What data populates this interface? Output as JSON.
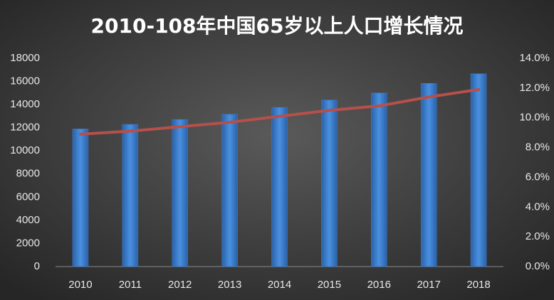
{
  "chart_data": {
    "type": "bar",
    "title": "2010-108年中国65岁以上人口增长情况",
    "categories": [
      "2010",
      "2011",
      "2012",
      "2013",
      "2014",
      "2015",
      "2016",
      "2017",
      "2018"
    ],
    "series": [
      {
        "type": "bar",
        "color": "#3b7fd4",
        "values": [
          11894,
          12288,
          12714,
          13161,
          13755,
          14386,
          15003,
          15831,
          16658
        ]
      },
      {
        "type": "line",
        "axis": "y2",
        "color": "#b5504b",
        "values": [
          8.9,
          9.1,
          9.4,
          9.7,
          10.1,
          10.5,
          10.8,
          11.4,
          11.9
        ]
      }
    ],
    "ylim": [
      0,
      18000
    ],
    "yticks": [
      0,
      2000,
      4000,
      6000,
      8000,
      10000,
      12000,
      14000,
      16000,
      18000
    ],
    "y2lim": [
      0,
      14
    ],
    "y2ticks": [
      {
        "value": 0,
        "label": "0.0%"
      },
      {
        "value": 2,
        "label": "2.0%"
      },
      {
        "value": 4,
        "label": "4.0%"
      },
      {
        "value": 6,
        "label": "6.0%"
      },
      {
        "value": 8,
        "label": "8.0%"
      },
      {
        "value": 10,
        "label": "10.0%"
      },
      {
        "value": 12,
        "label": "12.0%"
      },
      {
        "value": 14,
        "label": "14.0%"
      }
    ]
  }
}
